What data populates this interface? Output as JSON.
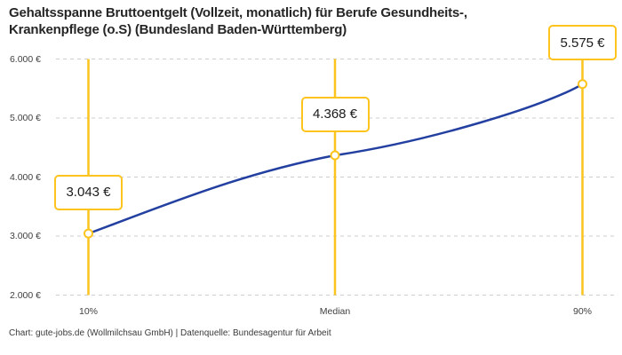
{
  "chart_data": {
    "type": "line",
    "title": "Gehaltsspanne Bruttoentgelt (Vollzeit, monatlich) für Berufe Gesundheits-,\nKrankenpflege (o.S) (Bundesland Baden-Württemberg)",
    "categories": [
      "10%",
      "Median",
      "90%"
    ],
    "values": [
      3043,
      4368,
      5575
    ],
    "value_labels": [
      "3.043 €",
      "4.368 €",
      "5.575 €"
    ],
    "y_tick_values": [
      6000,
      5000,
      4000,
      3000,
      2000
    ],
    "y_tick_labels": [
      "6.000 €",
      "5.000 €",
      "4.000 €",
      "3.000 €",
      "2.000 €"
    ],
    "ylim": [
      2000,
      6000
    ],
    "xlabel": "",
    "ylabel": "",
    "grid": "horizontal-dashed",
    "legend": "none",
    "marker": "open-circle",
    "colors": {
      "line": "#2340a0",
      "accent": "#fcc41d",
      "grid": "#cccccc",
      "title_text": "#262626",
      "axis_text": "#404040"
    }
  },
  "footer": {
    "text": "Chart: gute-jobs.de (Wollmilchsau GmbH) | Datenquelle: Bundesagentur für Arbeit"
  }
}
